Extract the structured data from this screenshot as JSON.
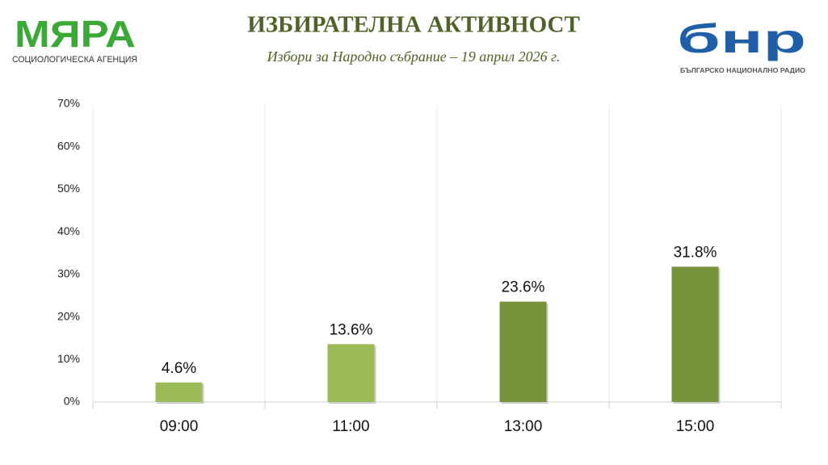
{
  "chart_data": {
    "type": "bar",
    "title": "ИЗБИРАТЕЛНА АКТИВНОСТ",
    "subtitle": "Избори за Народно събрание – 19 април 2026 г.",
    "logo_left": {
      "name": "МЯРА",
      "tagline": "СОЦИОЛОГИЧЕСКА АГЕНЦИЯ"
    },
    "logo_right": {
      "name": "бнр",
      "tagline": "БЪЛГАРСКО НАЦИОНАЛНО РАДИО"
    },
    "categories": [
      "09:00",
      "11:00",
      "13:00",
      "15:00"
    ],
    "values": [
      4.6,
      13.6,
      23.6,
      31.8
    ],
    "value_labels": [
      "4.6%",
      "13.6%",
      "23.6%",
      "31.8%"
    ],
    "colors": [
      "#9bbb59",
      "#9bbb59",
      "#77933c",
      "#77933c"
    ],
    "ylim": [
      0,
      70
    ],
    "yticks": [
      {
        "value": 0,
        "label": "0%"
      },
      {
        "value": 10,
        "label": "10%"
      },
      {
        "value": 20,
        "label": "20%"
      },
      {
        "value": 30,
        "label": "30%"
      },
      {
        "value": 40,
        "label": "40%"
      },
      {
        "value": 50,
        "label": "50%"
      },
      {
        "value": 60,
        "label": "60%"
      },
      {
        "value": 70,
        "label": "70%"
      }
    ],
    "grid": true
  }
}
